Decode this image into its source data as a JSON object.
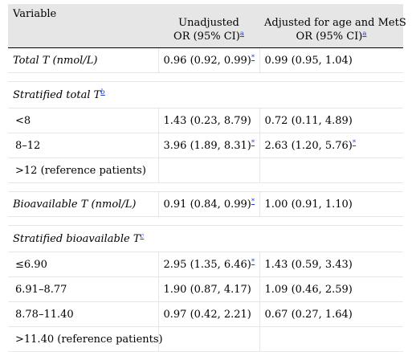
{
  "header": {
    "variable": "Variable",
    "col1_line1": "Unadjusted",
    "col1_line2": "OR (95% CI)",
    "col1_note": "a",
    "col2_line1": "Adjusted for age and MetS",
    "col2_line2": "OR (95% CI)",
    "col2_note": "a"
  },
  "rows": {
    "total_t": {
      "label": "Total T (nmol/L)",
      "unadj": "0.96 (0.92, 0.99)",
      "unadj_mark": "*",
      "adj": "0.99 (0.95, 1.04)"
    },
    "stratified_total": {
      "label": "Stratified total T",
      "note": "b"
    },
    "lt8": {
      "label": "<8",
      "unadj": "1.43 (0.23, 8.79)",
      "adj": "0.72 (0.11, 4.89)"
    },
    "r8_12": {
      "label": "8–12",
      "unadj": "3.96 (1.89, 8.31)",
      "unadj_mark": "*",
      "adj": "2.63 (1.20, 5.76)",
      "adj_mark": "*"
    },
    "gt12": {
      "label": ">12 (reference patients)"
    },
    "bio_t": {
      "label": "Bioavailable T (nmol/L)",
      "unadj": "0.91 (0.84, 0.99)",
      "unadj_mark": "*",
      "adj": "1.00 (0.91, 1.10)"
    },
    "stratified_bio": {
      "label": "Stratified bioavailable T",
      "note": "c"
    },
    "le690": {
      "label": "≤6.90",
      "unadj": "2.95 (1.35, 6.46)",
      "unadj_mark": "*",
      "adj": "1.43 (0.59, 3.43)"
    },
    "r691": {
      "label": "6.91–8.77",
      "unadj": "1.90 (0.87, 4.17)",
      "adj": "1.09 (0.46, 2.59)"
    },
    "r878": {
      "label": "8.78–11.40",
      "unadj": "0.97 (0.42, 2.21)",
      "adj": "0.67 (0.27, 1.64)"
    },
    "gt1140": {
      "label": ">11.40 (reference patients)"
    }
  }
}
